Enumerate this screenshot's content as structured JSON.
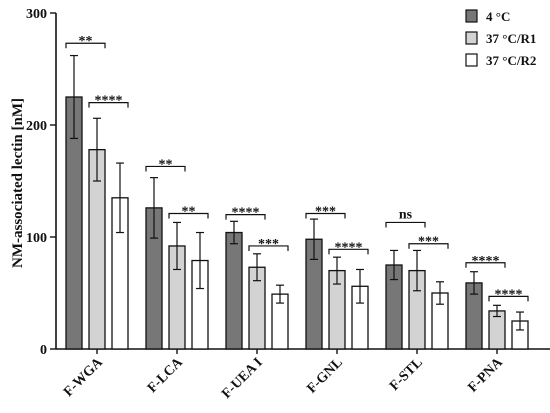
{
  "chart_data": {
    "type": "bar",
    "title": "",
    "xlabel": "",
    "ylabel": "NM-associated lectin [nM]",
    "ylim": [
      0,
      300
    ],
    "yticks": [
      0,
      100,
      200,
      300
    ],
    "grid": false,
    "legend_position": "top-right",
    "categories": [
      "F-WGA",
      "F-LCA",
      "F-UEA I",
      "F-GNL",
      "F-STL",
      "F-PNA"
    ],
    "series": [
      {
        "name": "4 °C",
        "color": "#777777",
        "values": [
          225,
          126,
          104,
          98,
          75,
          59
        ],
        "errors": [
          37,
          27,
          10,
          18,
          13,
          10
        ]
      },
      {
        "name": "37 °C/R1",
        "color": "#d3d3d3",
        "values": [
          178,
          92,
          73,
          70,
          70,
          34
        ],
        "errors": [
          28,
          21,
          12,
          12,
          18,
          5
        ]
      },
      {
        "name": "37 °C/R2",
        "color": "#ffffff",
        "values": [
          135,
          79,
          49,
          56,
          50,
          25
        ],
        "errors": [
          31,
          25,
          8,
          15,
          10,
          8
        ]
      }
    ],
    "annotations": [
      {
        "category": 0,
        "from_series": 0,
        "to_series": 1,
        "level": 273,
        "text": "**"
      },
      {
        "category": 0,
        "from_series": 1,
        "to_series": 2,
        "level": 220,
        "text": "****"
      },
      {
        "category": 1,
        "from_series": 0,
        "to_series": 1,
        "level": 163,
        "text": "**"
      },
      {
        "category": 1,
        "from_series": 1,
        "to_series": 2,
        "level": 121,
        "text": "**"
      },
      {
        "category": 2,
        "from_series": 0,
        "to_series": 1,
        "level": 120,
        "text": "****"
      },
      {
        "category": 2,
        "from_series": 1,
        "to_series": 2,
        "level": 92,
        "text": "***"
      },
      {
        "category": 3,
        "from_series": 0,
        "to_series": 1,
        "level": 121,
        "text": "***"
      },
      {
        "category": 3,
        "from_series": 1,
        "to_series": 2,
        "level": 89,
        "text": "****"
      },
      {
        "category": 4,
        "from_series": 0,
        "to_series": 1,
        "level": 113,
        "text": "ns"
      },
      {
        "category": 4,
        "from_series": 1,
        "to_series": 2,
        "level": 94,
        "text": "***"
      },
      {
        "category": 5,
        "from_series": 0,
        "to_series": 1,
        "level": 77,
        "text": "****"
      },
      {
        "category": 5,
        "from_series": 1,
        "to_series": 2,
        "level": 47,
        "text": "****"
      }
    ]
  }
}
